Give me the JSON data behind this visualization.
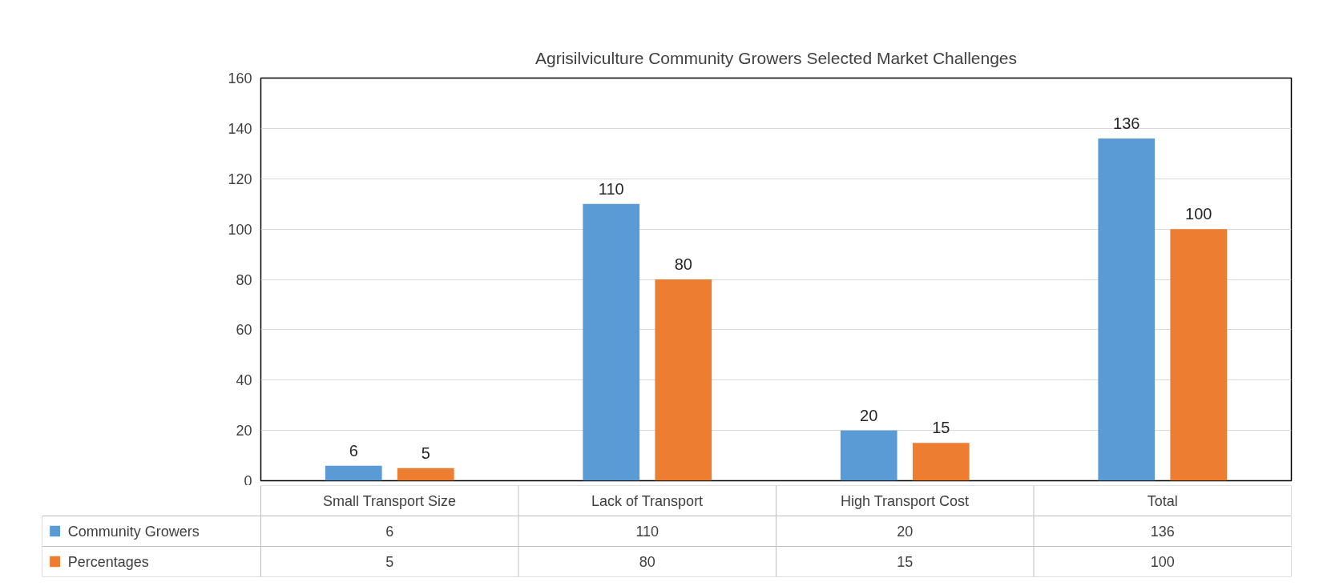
{
  "chart_data": [
    {
      "type": "bar",
      "title": "Agrisilviculture Community Growers Selected Market Challenges",
      "categories": [
        null,
        null,
        null,
        null
      ],
      "series": [
        {
          "color": "#5b9bd5",
          "values": [
            6,
            110,
            20,
            136
          ]
        },
        {
          "color": "#ed7d31",
          "values": [
            5,
            80,
            15,
            100
          ]
        }
      ],
      "ylim": [
        0,
        160
      ],
      "yticks": [
        0,
        20,
        40,
        60,
        80,
        100,
        120,
        140,
        160
      ],
      "grid": "y",
      "data_labels": true
    },
    {
      "type": "other",
      "categories": [
        "Small Transport Size",
        "Lack of Transport",
        "High Transport Cost",
        "Total"
      ],
      "series": [
        {
          "name": "Community Growers",
          "color": "#5b9bd5",
          "values": [
            6,
            110,
            20,
            136
          ]
        },
        {
          "name": "Percentages",
          "color": "#ed7d31",
          "values": [
            5,
            80,
            15,
            100
          ]
        }
      ],
      "legend": "left",
      "data_labels": true
    }
  ]
}
